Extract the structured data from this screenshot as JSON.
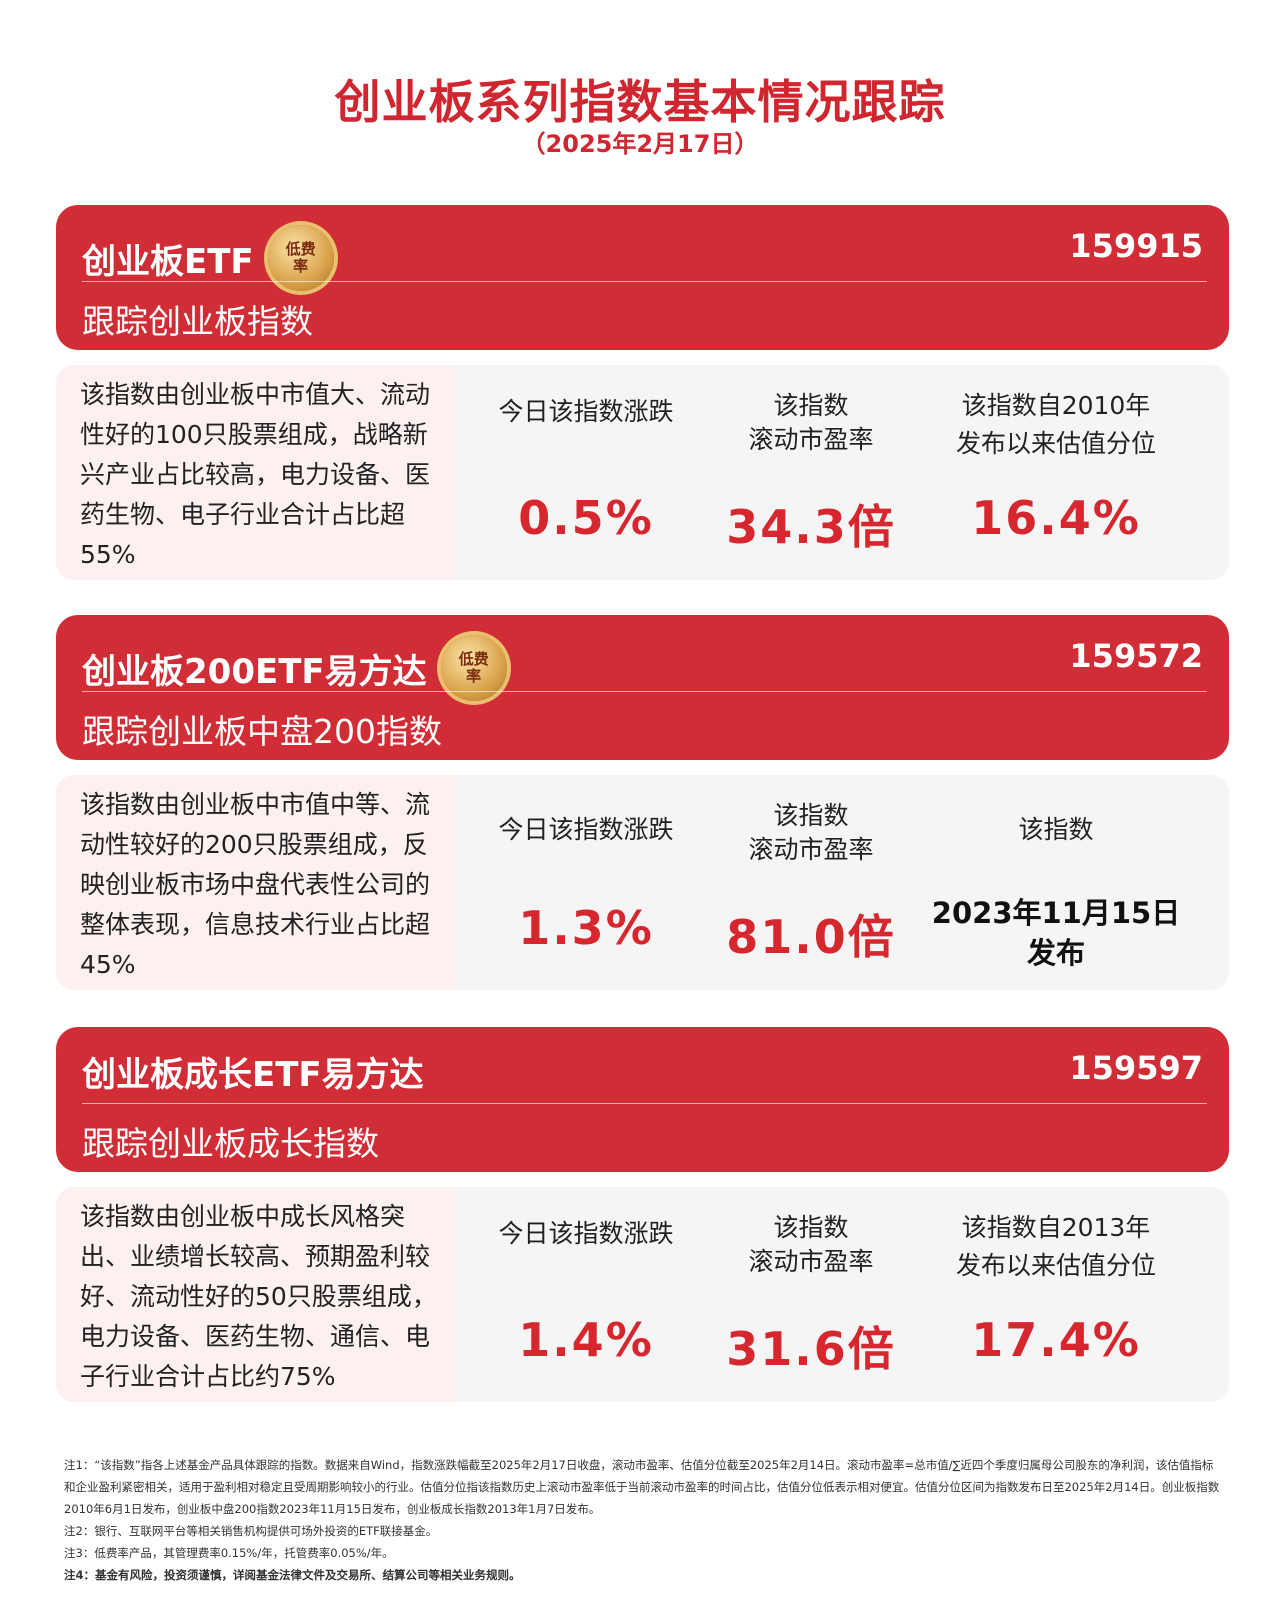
{
  "title": "创业板系列指数基本情况跟踪",
  "date": "（2025年2月17日）",
  "badge_text": "低费率",
  "cards": [
    {
      "name": "创业板ETF",
      "code": "159915",
      "track": "跟踪创业板指数",
      "has_badge": true,
      "desc": "该指数由创业板中市值大、流动性好的100只股票组成，战略新兴产业占比较高，电力设备、医药生物、电子行业合计占比超55%",
      "change_label": "今日该指数涨跌",
      "change": "0.5%",
      "pe_label1": "该指数",
      "pe_label2": "滚动市盈率",
      "pe": "34.3倍",
      "pct_label1": "该指数自2010年",
      "pct_label2": "发布以来估值分位",
      "pct": "16.4%"
    },
    {
      "name": "创业板200ETF易方达",
      "code": "159572",
      "track": "跟踪创业板中盘200指数",
      "has_badge": true,
      "desc": "该指数由创业板中市值中等、流动性较好的200只股票组成，反映创业板市场中盘代表性公司的整体表现，信息技术行业占比超45%",
      "change_label": "今日该指数涨跌",
      "change": "1.3%",
      "pe_label1": "该指数",
      "pe_label2": "滚动市盈率",
      "pe": "81.0倍",
      "pct_label1": "该指数",
      "pct_date": "2023年11月15日",
      "pct_date2": "发布"
    },
    {
      "name": "创业板成长ETF易方达",
      "code": "159597",
      "track": "跟踪创业板成长指数",
      "has_badge": false,
      "desc": "该指数由创业板中成长风格突出、业绩增长较高、预期盈利较好、流动性好的50只股票组成，电力设备、医药生物、通信、电子行业合计占比约75%",
      "change_label": "今日该指数涨跌",
      "change": "1.4%",
      "pe_label1": "该指数",
      "pe_label2": "滚动市盈率",
      "pe": "31.6倍",
      "pct_label1": "该指数自2013年",
      "pct_label2": "发布以来估值分位",
      "pct": "17.4%"
    }
  ],
  "notes": [
    "注1：“该指数”指各上述基金产品具体跟踪的指数。数据来自Wind，指数涨跌幅截至2025年2月17日收盘，滚动市盈率、估值分位截至2025年2月14日。滚动市盈率=总市值/∑近四个季度归属母公司股东的净利润，该估值指标和企业盈利紧密相关，适用于盈利相对稳定且受周期影响较小的行业。估值分位指该指数历史上滚动市盈率低于当前滚动市盈率的时间占比，估值分位低表示相对便宜。估值分位区间为指数发布日至2025年2月14日。创业板指数2010年6月1日发布，创业板中盘200指数2023年11月15日发布，创业板成长指数2013年1月7日发布。",
    "注2：银行、互联网平台等相关销售机构提供可场外投资的ETF联接基金。",
    "注3：低费率产品，其管理费率0.15%/年，托管费率0.05%/年。",
    "注4：基金有风险，投资须谨慎，详阅基金法律文件及交易所、结算公司等相关业务规则。"
  ]
}
